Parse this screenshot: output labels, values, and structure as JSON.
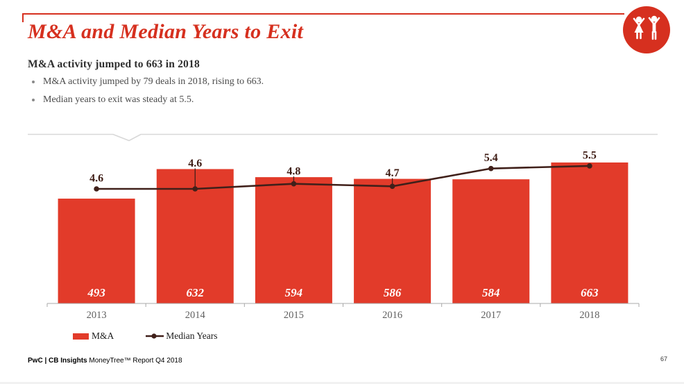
{
  "slide": {
    "title": "M&A and Median Years to Exit",
    "subtitle": "M&A activity jumped to 663 in 2018",
    "bullets": [
      "M&A activity jumped by 79 deals in 2018, rising to 663.",
      "Median years to exit was steady at 5.5."
    ],
    "footer_brand": "PwC | CB Insights",
    "footer_rest": "MoneyTree™ Report Q4 2018",
    "page_number": "67",
    "logo_icon": "celebrating-people-icon"
  },
  "colors": {
    "accent_red": "#d6301f",
    "bar_red": "#e23b2a",
    "line_maroon": "#40201a",
    "label_maroon": "#3f1d15",
    "axis_gray": "#a8a8a8",
    "divider_gray": "#d8d8d8",
    "xlabel_gray": "#606060"
  },
  "chart_data": {
    "type": "bar",
    "categories": [
      "2013",
      "2014",
      "2015",
      "2016",
      "2017",
      "2018"
    ],
    "series": [
      {
        "name": "M&A",
        "type": "bar",
        "values": [
          493,
          632,
          594,
          586,
          584,
          663
        ]
      },
      {
        "name": "Median Years",
        "type": "line",
        "values": [
          4.6,
          4.6,
          4.8,
          4.7,
          5.4,
          5.5
        ]
      }
    ],
    "bar_value_labels": [
      "493",
      "632",
      "594",
      "586",
      "584",
      "663"
    ],
    "line_value_labels": [
      "4.6",
      "4.6",
      "4.8",
      "4.7",
      "5.4",
      "5.5"
    ],
    "grid": false,
    "legend_position": "bottom-left",
    "bar_axis_range": [
      0,
      663
    ],
    "line_axis_range": [
      4.0,
      6.0
    ]
  }
}
